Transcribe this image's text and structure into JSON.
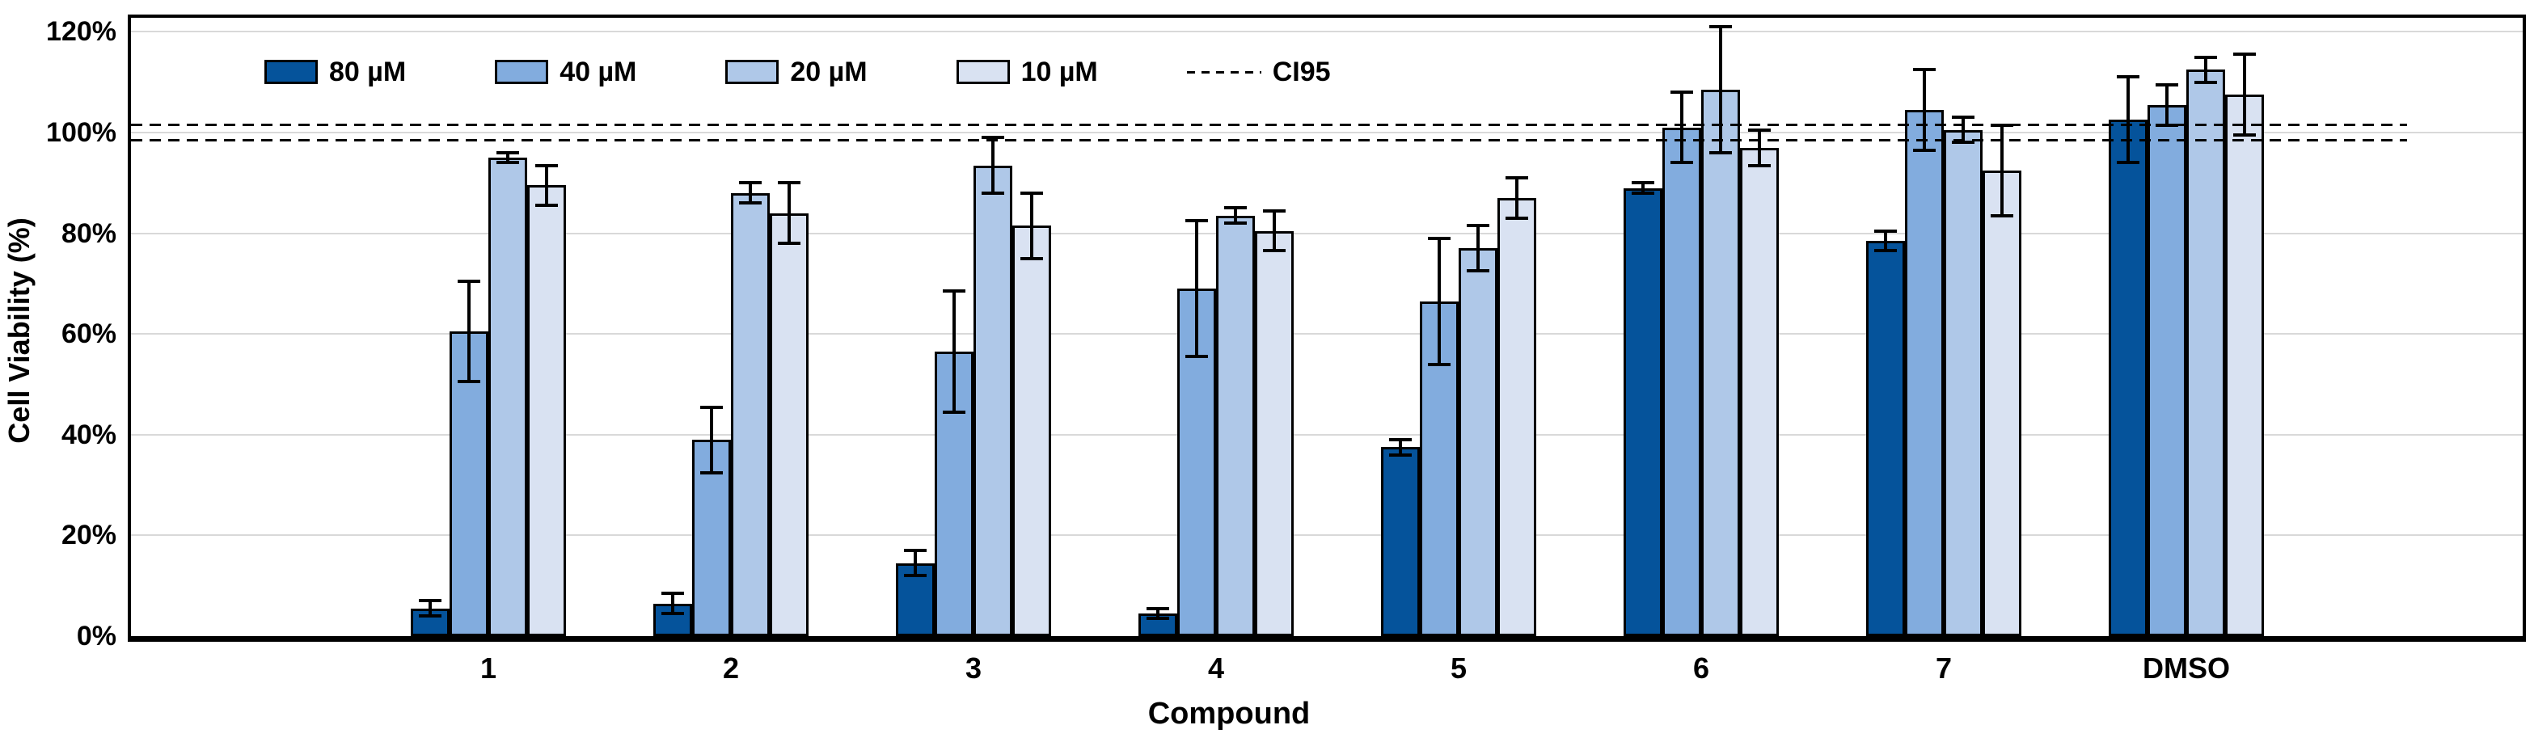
{
  "chart_data": {
    "type": "bar",
    "title": "",
    "xlabel": "Compound",
    "ylabel": "Cell Viability (%)",
    "ylim": [
      0,
      120
    ],
    "y_ticks": [
      "0%",
      "20%",
      "40%",
      "60%",
      "80%",
      "100%",
      "120%"
    ],
    "grid": true,
    "legend_position": "top-left-inside",
    "categories": [
      "1",
      "2",
      "3",
      "4",
      "5",
      "6",
      "7",
      "DMSO"
    ],
    "series": [
      {
        "name": "80 µM",
        "color": "#05539B",
        "values": [
          5.5,
          6.5,
          14.5,
          4.5,
          37.5,
          89,
          78.5,
          102.5
        ],
        "errors": [
          1.5,
          2,
          2.5,
          1,
          1.5,
          1,
          2,
          8.5
        ]
      },
      {
        "name": "40 µM",
        "color": "#82ACDE",
        "values": [
          60.5,
          39,
          56.5,
          69,
          66.5,
          101,
          104.5,
          105.5
        ],
        "errors": [
          10,
          6.5,
          12,
          13.5,
          12.5,
          7,
          8,
          4
        ]
      },
      {
        "name": "20 µM",
        "color": "#AFC8E8",
        "values": [
          95,
          88,
          93.5,
          83.5,
          77,
          108.5,
          100.5,
          112.5
        ],
        "errors": [
          1,
          2,
          5.5,
          1.5,
          4.5,
          12.5,
          2.5,
          2.5
        ]
      },
      {
        "name": "10 µM",
        "color": "#D9E2F2",
        "values": [
          89.5,
          84,
          81.5,
          80.5,
          87,
          97,
          92.5,
          107.5
        ],
        "errors": [
          4,
          6,
          6.5,
          4,
          4,
          3.5,
          9,
          8
        ]
      }
    ],
    "ci95": {
      "label": "CI95",
      "upper": 101.5,
      "lower": 98.5
    }
  }
}
